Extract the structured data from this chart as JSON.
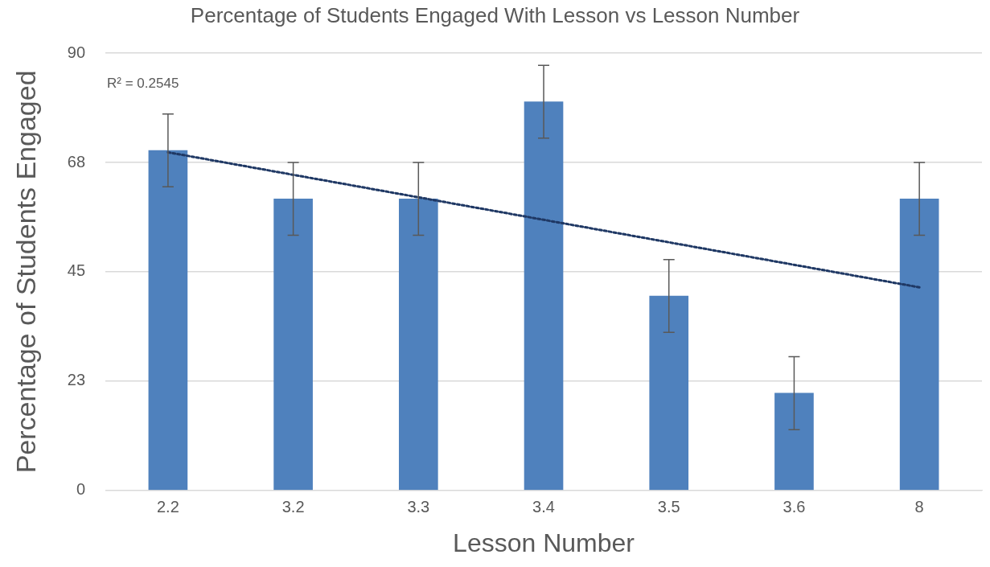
{
  "chart_data": {
    "type": "bar",
    "title": "Percentage of Students Engaged With Lesson vs Lesson Number",
    "xlabel": "Lesson Number",
    "ylabel": "Percentage of Students Engaged",
    "categories": [
      "2.2",
      "3.2",
      "3.3",
      "3.4",
      "3.5",
      "3.6",
      "8"
    ],
    "series": [
      {
        "color": "#4f81bd",
        "values": [
          70,
          60,
          60,
          80,
          40,
          20,
          60
        ],
        "errors": [
          7.5,
          7.5,
          7.5,
          7.5,
          7.5,
          7.5,
          7.5
        ]
      },
      {
        "type": "line",
        "color": "#1f3864",
        "x": [
          "2.2",
          "8"
        ],
        "values": [
          69.6,
          41.8
        ],
        "line_style": "dotted",
        "marker": "none"
      }
    ],
    "ylim": [
      0,
      90
    ],
    "yticks": [
      0,
      {
        "value": 22.5,
        "label": "23"
      },
      45,
      {
        "value": 67.5,
        "label": "68"
      },
      90
    ],
    "grid": "y",
    "legend": false,
    "annotations": [
      "R² = 0.2545"
    ]
  }
}
